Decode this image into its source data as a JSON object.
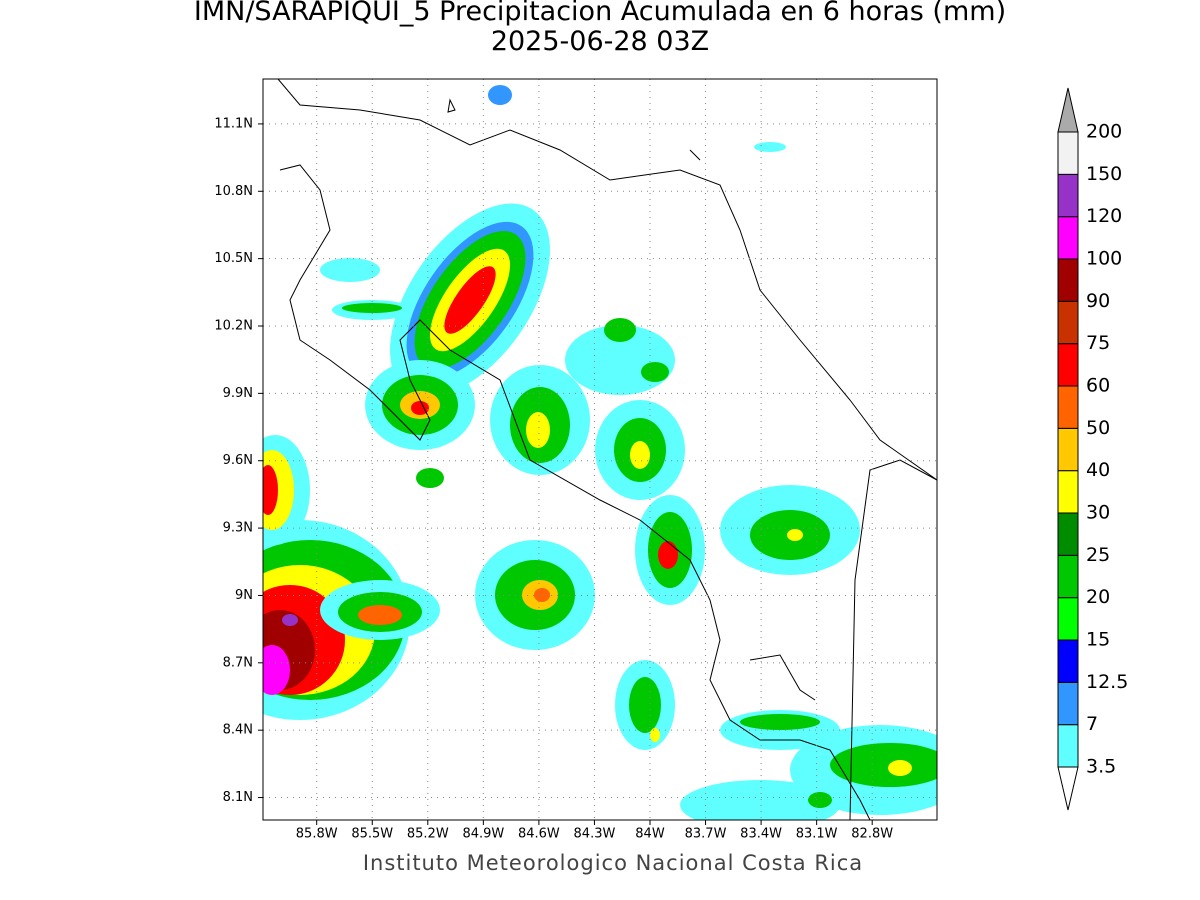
{
  "title": "IMN/SARAPIQUI_5 Precipitacion Acumulada en 6 horas (mm)",
  "subtitle": "2025-06-28 03Z",
  "footer": "Instituto Meteorologico Nacional Costa Rica",
  "map": {
    "latlim": [
      8.0,
      11.3
    ],
    "lonlim": [
      -86.09,
      -82.45
    ],
    "lat_ticks": [
      {
        "value": 11.1,
        "label": "11.1N"
      },
      {
        "value": 10.8,
        "label": "10.8N"
      },
      {
        "value": 10.5,
        "label": "10.5N"
      },
      {
        "value": 10.2,
        "label": "10.2N"
      },
      {
        "value": 9.9,
        "label": "9.9N"
      },
      {
        "value": 9.6,
        "label": "9.6N"
      },
      {
        "value": 9.3,
        "label": "9.3N"
      },
      {
        "value": 9,
        "label": "9N"
      },
      {
        "value": 8.7,
        "label": "8.7N"
      },
      {
        "value": 8.4,
        "label": "8.4N"
      },
      {
        "value": 8.1,
        "label": "8.1N"
      }
    ],
    "lon_ticks": [
      {
        "value": -85.8,
        "label": "85.8W"
      },
      {
        "value": -85.5,
        "label": "85.5W"
      },
      {
        "value": -85.2,
        "label": "85.2W"
      },
      {
        "value": -84.9,
        "label": "84.9W"
      },
      {
        "value": -84.6,
        "label": "84.6W"
      },
      {
        "value": -84.3,
        "label": "84.3W"
      },
      {
        "value": -84,
        "label": "84W"
      },
      {
        "value": -83.7,
        "label": "83.7W"
      },
      {
        "value": -83.4,
        "label": "83.4W"
      },
      {
        "value": -83.1,
        "label": "83.1W"
      },
      {
        "value": -82.8,
        "label": "82.8W"
      }
    ],
    "grid": true
  },
  "colorbar": {
    "levels": [
      3.5,
      7,
      12.5,
      15,
      20,
      25,
      30,
      40,
      50,
      60,
      75,
      90,
      100,
      120,
      150,
      200
    ],
    "colors": [
      "#60ffff",
      "#3296ff",
      "#0000ff",
      "#00ff00",
      "#00c800",
      "#008c00",
      "#ffff00",
      "#ffc800",
      "#ff6400",
      "#ff0000",
      "#c83200",
      "#a00000",
      "#ff00ff",
      "#9632c8",
      "#f2f2f2"
    ],
    "over_color": "#aaaaaa",
    "under_color": "#ffffff"
  }
}
